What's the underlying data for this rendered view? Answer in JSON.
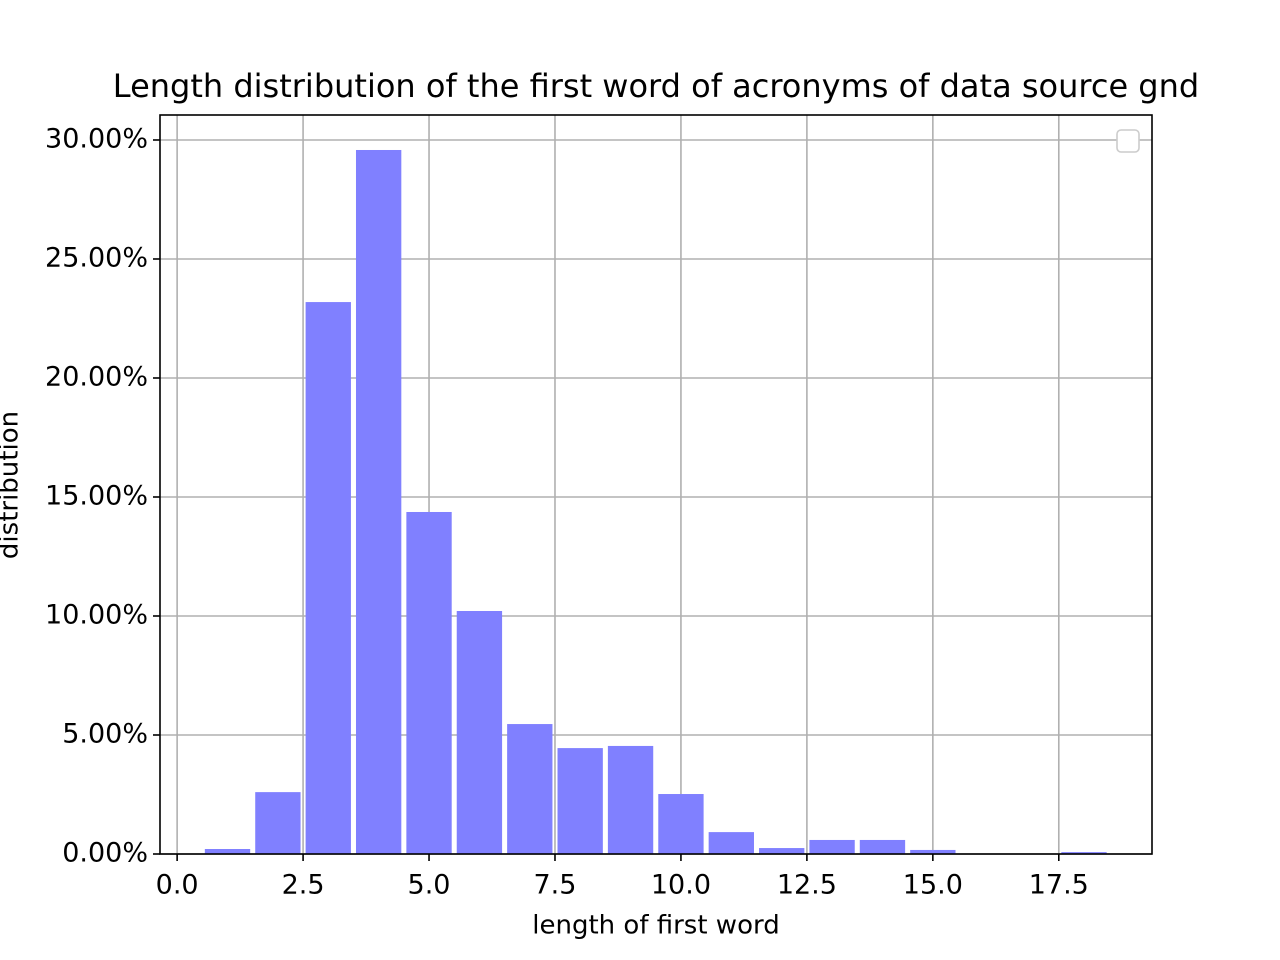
{
  "chart_data": {
    "type": "bar",
    "title": "Length distribution of the first word of acronyms of data source gnd",
    "x_label": "length of first word",
    "y_label": "distribution",
    "x": [
      1,
      2,
      3,
      4,
      5,
      6,
      7,
      8,
      9,
      10,
      11,
      12,
      13,
      14,
      15,
      16,
      17,
      18
    ],
    "values": [
      0.21,
      2.6,
      23.19,
      29.58,
      14.37,
      10.21,
      5.46,
      4.45,
      4.54,
      2.52,
      0.92,
      0.25,
      0.59,
      0.59,
      0.17,
      0,
      0,
      0.08
    ],
    "color": "#8080ff",
    "xlim": [
      -0.34,
      19.35
    ],
    "xticks": [
      {
        "value": 0,
        "label": "0.0"
      },
      2.5,
      {
        "value": 5,
        "label": "5.0"
      },
      7.5,
      {
        "value": 10,
        "label": "10.0"
      },
      12.5,
      {
        "value": 15,
        "label": "15.0"
      },
      17.5
    ],
    "ylim": [
      0,
      31.05
    ],
    "yticks": [
      {
        "value": 0,
        "label": "0.00%"
      },
      {
        "value": 5,
        "label": "5.00%"
      },
      {
        "value": 10,
        "label": "10.00%"
      },
      {
        "value": 15,
        "label": "15.00%"
      },
      {
        "value": 20,
        "label": "20.00%"
      },
      {
        "value": 25,
        "label": "25.00%"
      },
      {
        "value": 30,
        "label": "30.00%"
      }
    ],
    "grid": true,
    "legend": "upper right"
  }
}
